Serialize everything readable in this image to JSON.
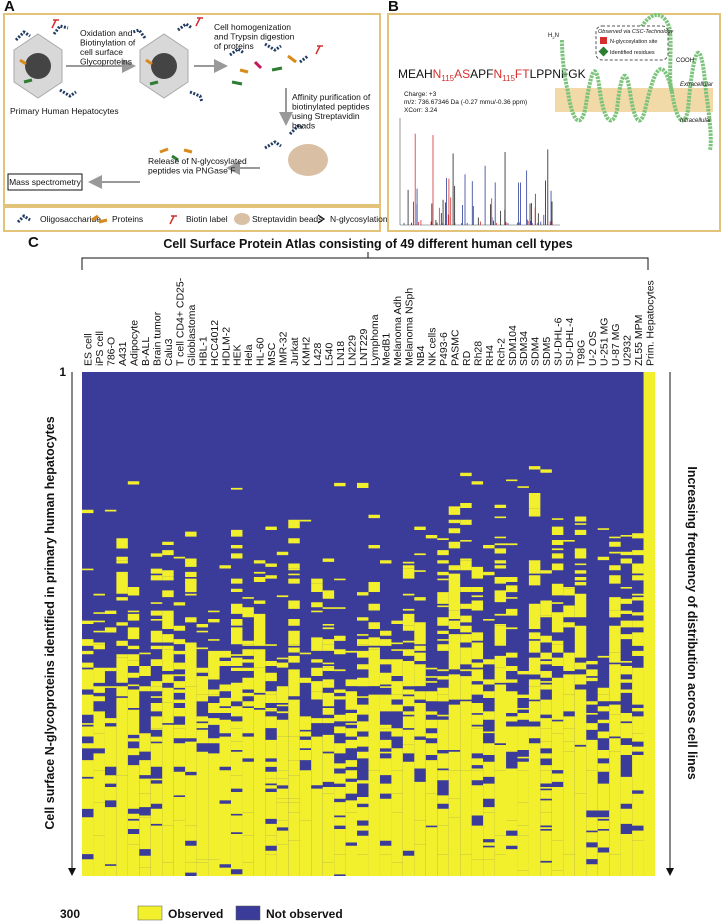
{
  "panel_a": {
    "label": "A",
    "steps": [
      [
        "Oxidation and",
        "Biotinylation of",
        "cell surface",
        "Glycoproteins"
      ],
      [
        "Cell homogenization",
        "and Trypsin digestion",
        "of proteins"
      ],
      [
        "Affinity purification of",
        "biotinylated peptides",
        "using Streptavidin",
        "beads"
      ],
      [
        "Release of N-glycosylated",
        "peptides via PNGase F"
      ]
    ],
    "cell_label": "Primary Human Hepatocytes",
    "mass_spec": "Mass spectrometry",
    "legend": [
      "Oligosaccharide",
      "Proteins",
      "Biotin label",
      "Streptavidin beads",
      "N-glycosylation site"
    ]
  },
  "panel_b": {
    "label": "B",
    "sequence": [
      "MEAH",
      "N",
      "115",
      "AS",
      "APF",
      "N",
      "115",
      "FT",
      "LPPNFGK"
    ],
    "charge": "Charge: +3",
    "mz": "m/z: 736.67346 Da (-0.27 mmu/-0.36 ppm)",
    "xcorr": "XCorr: 3.24",
    "n_term": [
      "H",
      "2",
      "N"
    ],
    "c_term": "COOH",
    "legend_title": "Observed via CSC-Technology",
    "legend": [
      "N-glycosylation site",
      "Identified residues"
    ],
    "extracellular": "Extracellular",
    "intracellular": "Intracellular"
  },
  "panel_c": {
    "label": "C",
    "title": "Cell Surface Protein Atlas consisting of 49 different human cell types",
    "columns": [
      "ES cell",
      "iPS cell",
      "786-O",
      "A431",
      "Adipocyte",
      "B-ALL",
      "Brain tumor",
      "Calu3",
      "T cell CD4+ CD25-",
      "Glioblastoma",
      "HBL-1",
      "HCC4012",
      "HDLM-2",
      "HEK",
      "Hela",
      "HL-60",
      "MSC",
      "IMR-32",
      "Jurkat",
      "KMH2",
      "L428",
      "L540",
      "LN18",
      "LN229",
      "LNT229",
      "Lymphoma",
      "MedB1",
      "Melanoma Adh",
      "Melanoma NSph",
      "NB4",
      "NK cells",
      "P493-6",
      "PASMC",
      "RD",
      "Rh28",
      "RH4",
      "Rch-2",
      "SDM104",
      "SDM34",
      "SDM4",
      "SDM5",
      "SU-DHL-6",
      "SU-DHL-4",
      "T98G",
      "U-2 OS",
      "U-251 MG",
      "U-87 MG",
      "U2932",
      "ZL55 MPM",
      "Prim. Hepatocytes"
    ],
    "y_label": "Cell surface N-glycoproteins identified in primary human hepatocytes",
    "y_ticks": [
      1,
      300
    ],
    "right_label": "Increasing frequency of distribution across cell lines",
    "legend": [
      {
        "name": "Observed",
        "color": "#f2f02c"
      },
      {
        "name": "Not observed",
        "color": "#3b3b9a"
      }
    ]
  }
}
